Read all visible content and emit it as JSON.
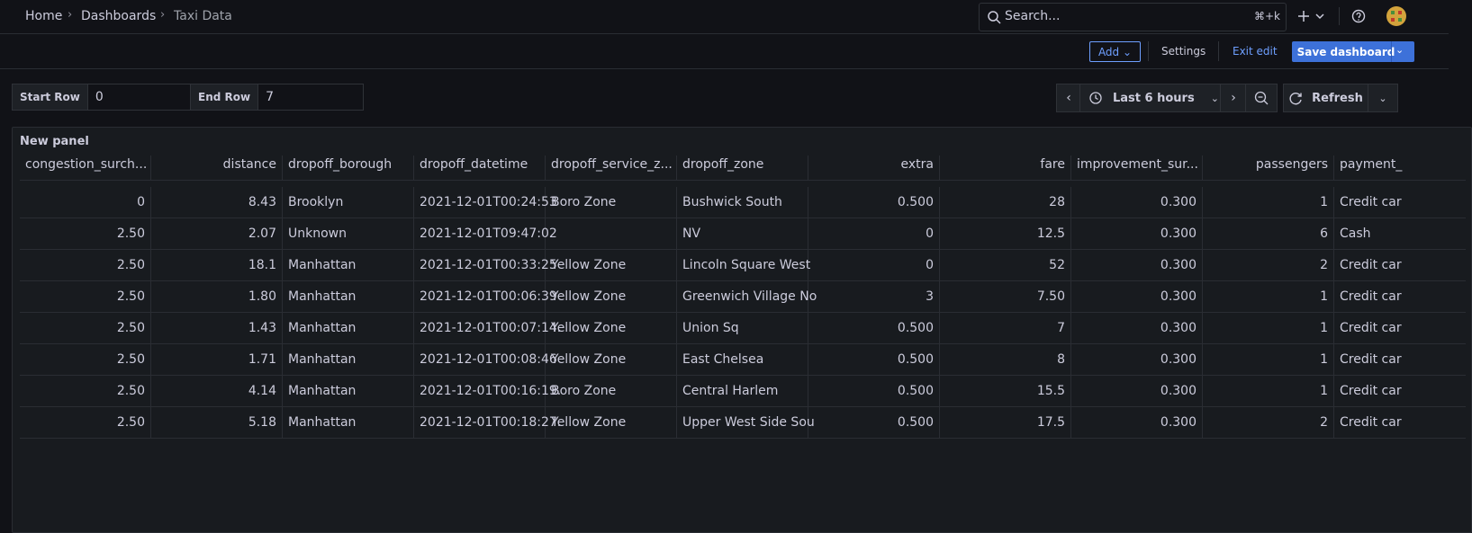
{
  "breadcrumbs": [
    "Home",
    "Dashboards",
    "Taxi Data"
  ],
  "search": {
    "placeholder": "Search...",
    "shortcut": "⌘+k"
  },
  "toolbar": {
    "add": "Add",
    "settings": "Settings",
    "exit_edit": "Exit edit",
    "save": "Save dashboard"
  },
  "variables": [
    {
      "label": "Start Row",
      "value": "0"
    },
    {
      "label": "End Row",
      "value": "7"
    }
  ],
  "time_range": "Last 6 hours",
  "refresh": "Refresh",
  "panel": {
    "title": "New panel",
    "table": {
      "columns": [
        "congestion_surch...",
        "distance",
        "dropoff_borough",
        "dropoff_datetime",
        "dropoff_service_z...",
        "dropoff_zone",
        "extra",
        "fare",
        "improvement_sur...",
        "passengers",
        "payment_"
      ],
      "rows": [
        [
          "0",
          "8.43",
          "Brooklyn",
          "2021-12-01T00:24:53",
          "Boro Zone",
          "Bushwick South",
          "0.500",
          "28",
          "0.300",
          "1",
          "Credit car"
        ],
        [
          "2.50",
          "2.07",
          "Unknown",
          "2021-12-01T09:47:02",
          null,
          "NV",
          "0",
          "12.5",
          "0.300",
          "6",
          "Cash"
        ],
        [
          "2.50",
          "18.1",
          "Manhattan",
          "2021-12-01T00:33:25",
          "Yellow Zone",
          "Lincoln Square West",
          "0",
          "52",
          "0.300",
          "2",
          "Credit car"
        ],
        [
          "2.50",
          "1.80",
          "Manhattan",
          "2021-12-01T00:06:39",
          "Yellow Zone",
          "Greenwich Village No",
          "3",
          "7.50",
          "0.300",
          "1",
          "Credit car"
        ],
        [
          "2.50",
          "1.43",
          "Manhattan",
          "2021-12-01T00:07:14.",
          "Yellow Zone",
          "Union Sq",
          "0.500",
          "7",
          "0.300",
          "1",
          "Credit car"
        ],
        [
          "2.50",
          "1.71",
          "Manhattan",
          "2021-12-01T00:08:46",
          "Yellow Zone",
          "East Chelsea",
          "0.500",
          "8",
          "0.300",
          "1",
          "Credit car"
        ],
        [
          "2.50",
          "4.14",
          "Manhattan",
          "2021-12-01T00:16:19.",
          "Boro Zone",
          "Central Harlem",
          "0.500",
          "15.5",
          "0.300",
          "1",
          "Credit car"
        ],
        [
          "2.50",
          "5.18",
          "Manhattan",
          "2021-12-01T00:18:27.",
          "Yellow Zone",
          "Upper West Side Sou",
          "0.500",
          "17.5",
          "0.300",
          "2",
          "Credit car"
        ]
      ]
    }
  }
}
